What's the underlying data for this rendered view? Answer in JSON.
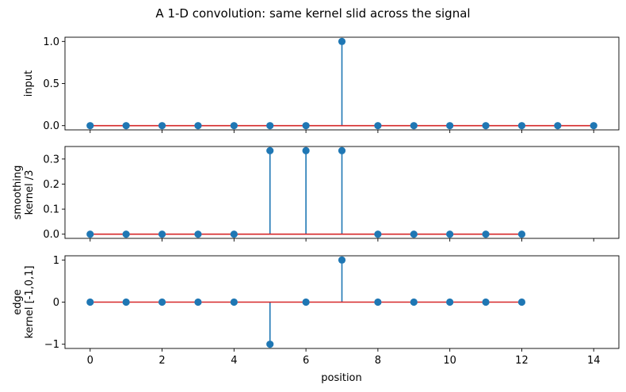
{
  "chart_data": {
    "type": "stem",
    "title": "A 1-D convolution: same kernel slid across the signal",
    "xlabel": "position",
    "xlim": [
      -0.7,
      14.7
    ],
    "xticks": [
      0,
      2,
      4,
      6,
      8,
      10,
      12,
      14
    ],
    "shared_x": true,
    "grid": false,
    "colors": {
      "stem": "#1f77b4",
      "baseline": "#d62728"
    },
    "panels": [
      {
        "id": "input",
        "ylabel": [
          "input"
        ],
        "ylim": [
          -0.05,
          1.05
        ],
        "yticks": [
          {
            "v": 0,
            "t": "0.0"
          },
          {
            "v": 0.5,
            "t": "0.5"
          },
          {
            "v": 1,
            "t": "1.0"
          }
        ],
        "x": [
          0,
          1,
          2,
          3,
          4,
          5,
          6,
          7,
          8,
          9,
          10,
          11,
          12,
          13,
          14
        ],
        "values": [
          0,
          0,
          0,
          0,
          0,
          0,
          0,
          1,
          0,
          0,
          0,
          0,
          0,
          0,
          0
        ]
      },
      {
        "id": "smoothing",
        "ylabel": [
          "smoothing",
          "kernel /3"
        ],
        "ylim": [
          -0.0167,
          0.35
        ],
        "yticks": [
          {
            "v": 0,
            "t": "0.0"
          },
          {
            "v": 0.1,
            "t": "0.1"
          },
          {
            "v": 0.2,
            "t": "0.2"
          },
          {
            "v": 0.3,
            "t": "0.3"
          }
        ],
        "x": [
          0,
          1,
          2,
          3,
          4,
          5,
          6,
          7,
          8,
          9,
          10,
          11,
          12
        ],
        "values": [
          0,
          0,
          0,
          0,
          0,
          0.3333,
          0.3333,
          0.3333,
          0,
          0,
          0,
          0,
          0
        ]
      },
      {
        "id": "edge",
        "ylabel": [
          "edge",
          "kernel [-1,0,1]"
        ],
        "ylim": [
          -1.1,
          1.1
        ],
        "yticks": [
          {
            "v": -1,
            "t": "−1"
          },
          {
            "v": 0,
            "t": "0"
          },
          {
            "v": 1,
            "t": "1"
          }
        ],
        "x": [
          0,
          1,
          2,
          3,
          4,
          5,
          6,
          7,
          8,
          9,
          10,
          11,
          12
        ],
        "values": [
          0,
          0,
          0,
          0,
          0,
          -1,
          0,
          1,
          0,
          0,
          0,
          0,
          0
        ]
      }
    ]
  }
}
